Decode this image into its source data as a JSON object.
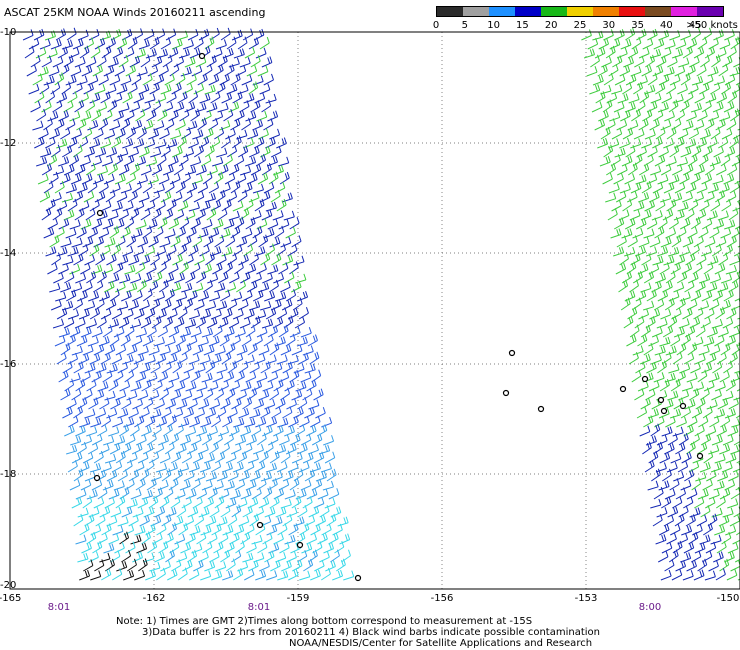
{
  "title": "ASCAT 25KM NOAA Winds 20160211 ascending",
  "legend": {
    "labels": [
      "0",
      "5",
      "10",
      "15",
      "20",
      "25",
      "30",
      "35",
      "40",
      "45",
      ">50 knots"
    ],
    "colors": [
      "#2b2b2b",
      "#a0a0a0",
      "#1e90ff",
      "#0000c8",
      "#18b818",
      "#f0d000",
      "#f08000",
      "#e81010",
      "#7a4a20",
      "#e020e0",
      "#6a00b0"
    ]
  },
  "axes": {
    "lon_labels": [
      "-165",
      "-162",
      "-159",
      "-156",
      "-153",
      "-150"
    ],
    "lat_labels": [
      "-10",
      "-12",
      "-14",
      "-16",
      "-18",
      "-20"
    ]
  },
  "pass_times": [
    "8:01",
    "8:01",
    "8:00"
  ],
  "notes": [
    "Note: 1) Times are GMT 2)Times along bottom correspond to measurement at -15S",
    "3)Data buffer is 22 hrs from 20160211 4) Black wind barbs indicate possible contamination",
    "NOAA/NESDIS/Center for Satellite Applications and Research"
  ],
  "swaths": {
    "left": {
      "wind_colors": [
        "navy",
        "blue",
        "light blue",
        "cyan",
        "green",
        "black"
      ]
    },
    "right": {
      "wind_colors": [
        "green",
        "navy"
      ]
    }
  }
}
